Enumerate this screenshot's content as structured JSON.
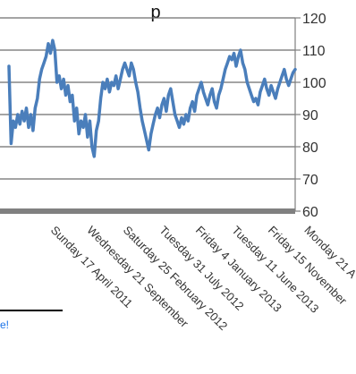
{
  "page": {
    "title_fragment": "p",
    "footer_link": "e!"
  },
  "colors": {
    "series": "#4a7ebb",
    "gridline": "#6e6e6e",
    "baseline": "#808080",
    "axis": "#7f7f7f"
  },
  "chart_data": {
    "type": "line",
    "title": "",
    "xlabel": "",
    "ylabel": "",
    "ylim": [
      60,
      120
    ],
    "y_ticks": [
      60,
      70,
      80,
      90,
      100,
      110,
      120
    ],
    "y_axis_side": "right",
    "grid": true,
    "legend": "none",
    "x_tick_labels": [
      "Sunday 17 April 2011",
      "Wednesday 21 September",
      "Saturday 25 February 2012",
      "Tuesday 31 July 2012",
      "Friday 4 January 2013",
      "Tuesday 11 June 2013",
      "Friday 15 November",
      "Monday 21 A"
    ],
    "series": [
      {
        "color": "#4a7ebb",
        "values": [
          105,
          81,
          88,
          86,
          90,
          87,
          91,
          88,
          92,
          86,
          90,
          85,
          92,
          95,
          101,
          104,
          106,
          108,
          112,
          109,
          113,
          110,
          100,
          102,
          98,
          101,
          96,
          99,
          94,
          96,
          88,
          92,
          84,
          88,
          86,
          90,
          83,
          88,
          80,
          77,
          85,
          88,
          95,
          100,
          98,
          101,
          97,
          100,
          99,
          102,
          98,
          101,
          104,
          106,
          104,
          102,
          106,
          104,
          100,
          97,
          92,
          88,
          85,
          82,
          79,
          84,
          87,
          90,
          92,
          89,
          93,
          95,
          91,
          96,
          98,
          94,
          90,
          88,
          86,
          89,
          87,
          90,
          88,
          92,
          94,
          91,
          96,
          98,
          100,
          97,
          95,
          93,
          96,
          98,
          94,
          92,
          96,
          98,
          101,
          104,
          106,
          108,
          107,
          109,
          105,
          108,
          110,
          106,
          104,
          100,
          98,
          96,
          94,
          95,
          93,
          97,
          99,
          101,
          98,
          96,
          99,
          97,
          95,
          98,
          100,
          102,
          104,
          101,
          99,
          101,
          103,
          104
        ]
      }
    ]
  }
}
